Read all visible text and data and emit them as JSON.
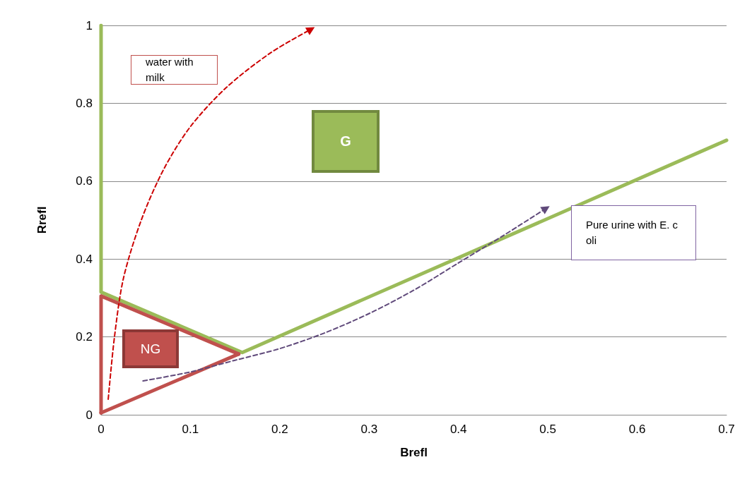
{
  "chart_data": {
    "type": "line",
    "xlabel": "Brefl",
    "ylabel": "Rrefl",
    "xlim": [
      0,
      0.7
    ],
    "xticks": [
      0,
      0.1,
      0.2,
      0.3,
      0.4,
      0.5,
      0.6,
      0.7
    ],
    "ylim": [
      0,
      1
    ],
    "yticks": [
      0,
      0.2,
      0.4,
      0.6,
      0.8,
      1
    ],
    "grid": "y",
    "marker": "none",
    "series": [
      {
        "color": "#9bbb59",
        "line_style": "solid",
        "x": [
          0,
          0,
          0.158,
          0.7
        ],
        "values": [
          1,
          0.315,
          0.16,
          0.705
        ]
      },
      {
        "color": "#c0504d",
        "line_style": "solid",
        "x": [
          0,
          0,
          0.154
        ],
        "values": [
          0.005,
          0.305,
          0.156
        ]
      },
      {
        "color": "#c0504d",
        "line_style": "solid",
        "x": [
          0,
          0.154
        ],
        "values": [
          0.005,
          0.156
        ]
      },
      {
        "color": "#cc0000",
        "line_style": "dashed",
        "x": [
          0.008,
          0.015,
          0.025,
          0.045,
          0.07,
          0.1,
          0.14,
          0.19,
          0.235
        ],
        "values": [
          0.04,
          0.2,
          0.35,
          0.5,
          0.63,
          0.74,
          0.84,
          0.93,
          0.99
        ]
      },
      {
        "color": "#604a7b",
        "line_style": "dashed",
        "x": [
          0.047,
          0.1,
          0.15,
          0.2,
          0.25,
          0.3,
          0.35,
          0.4,
          0.45,
          0.498
        ],
        "values": [
          0.087,
          0.11,
          0.14,
          0.17,
          0.21,
          0.26,
          0.32,
          0.39,
          0.46,
          0.53
        ]
      }
    ],
    "annotations": [
      "water with milk",
      "G",
      "NG",
      "Pure urine with E. c oli"
    ]
  }
}
